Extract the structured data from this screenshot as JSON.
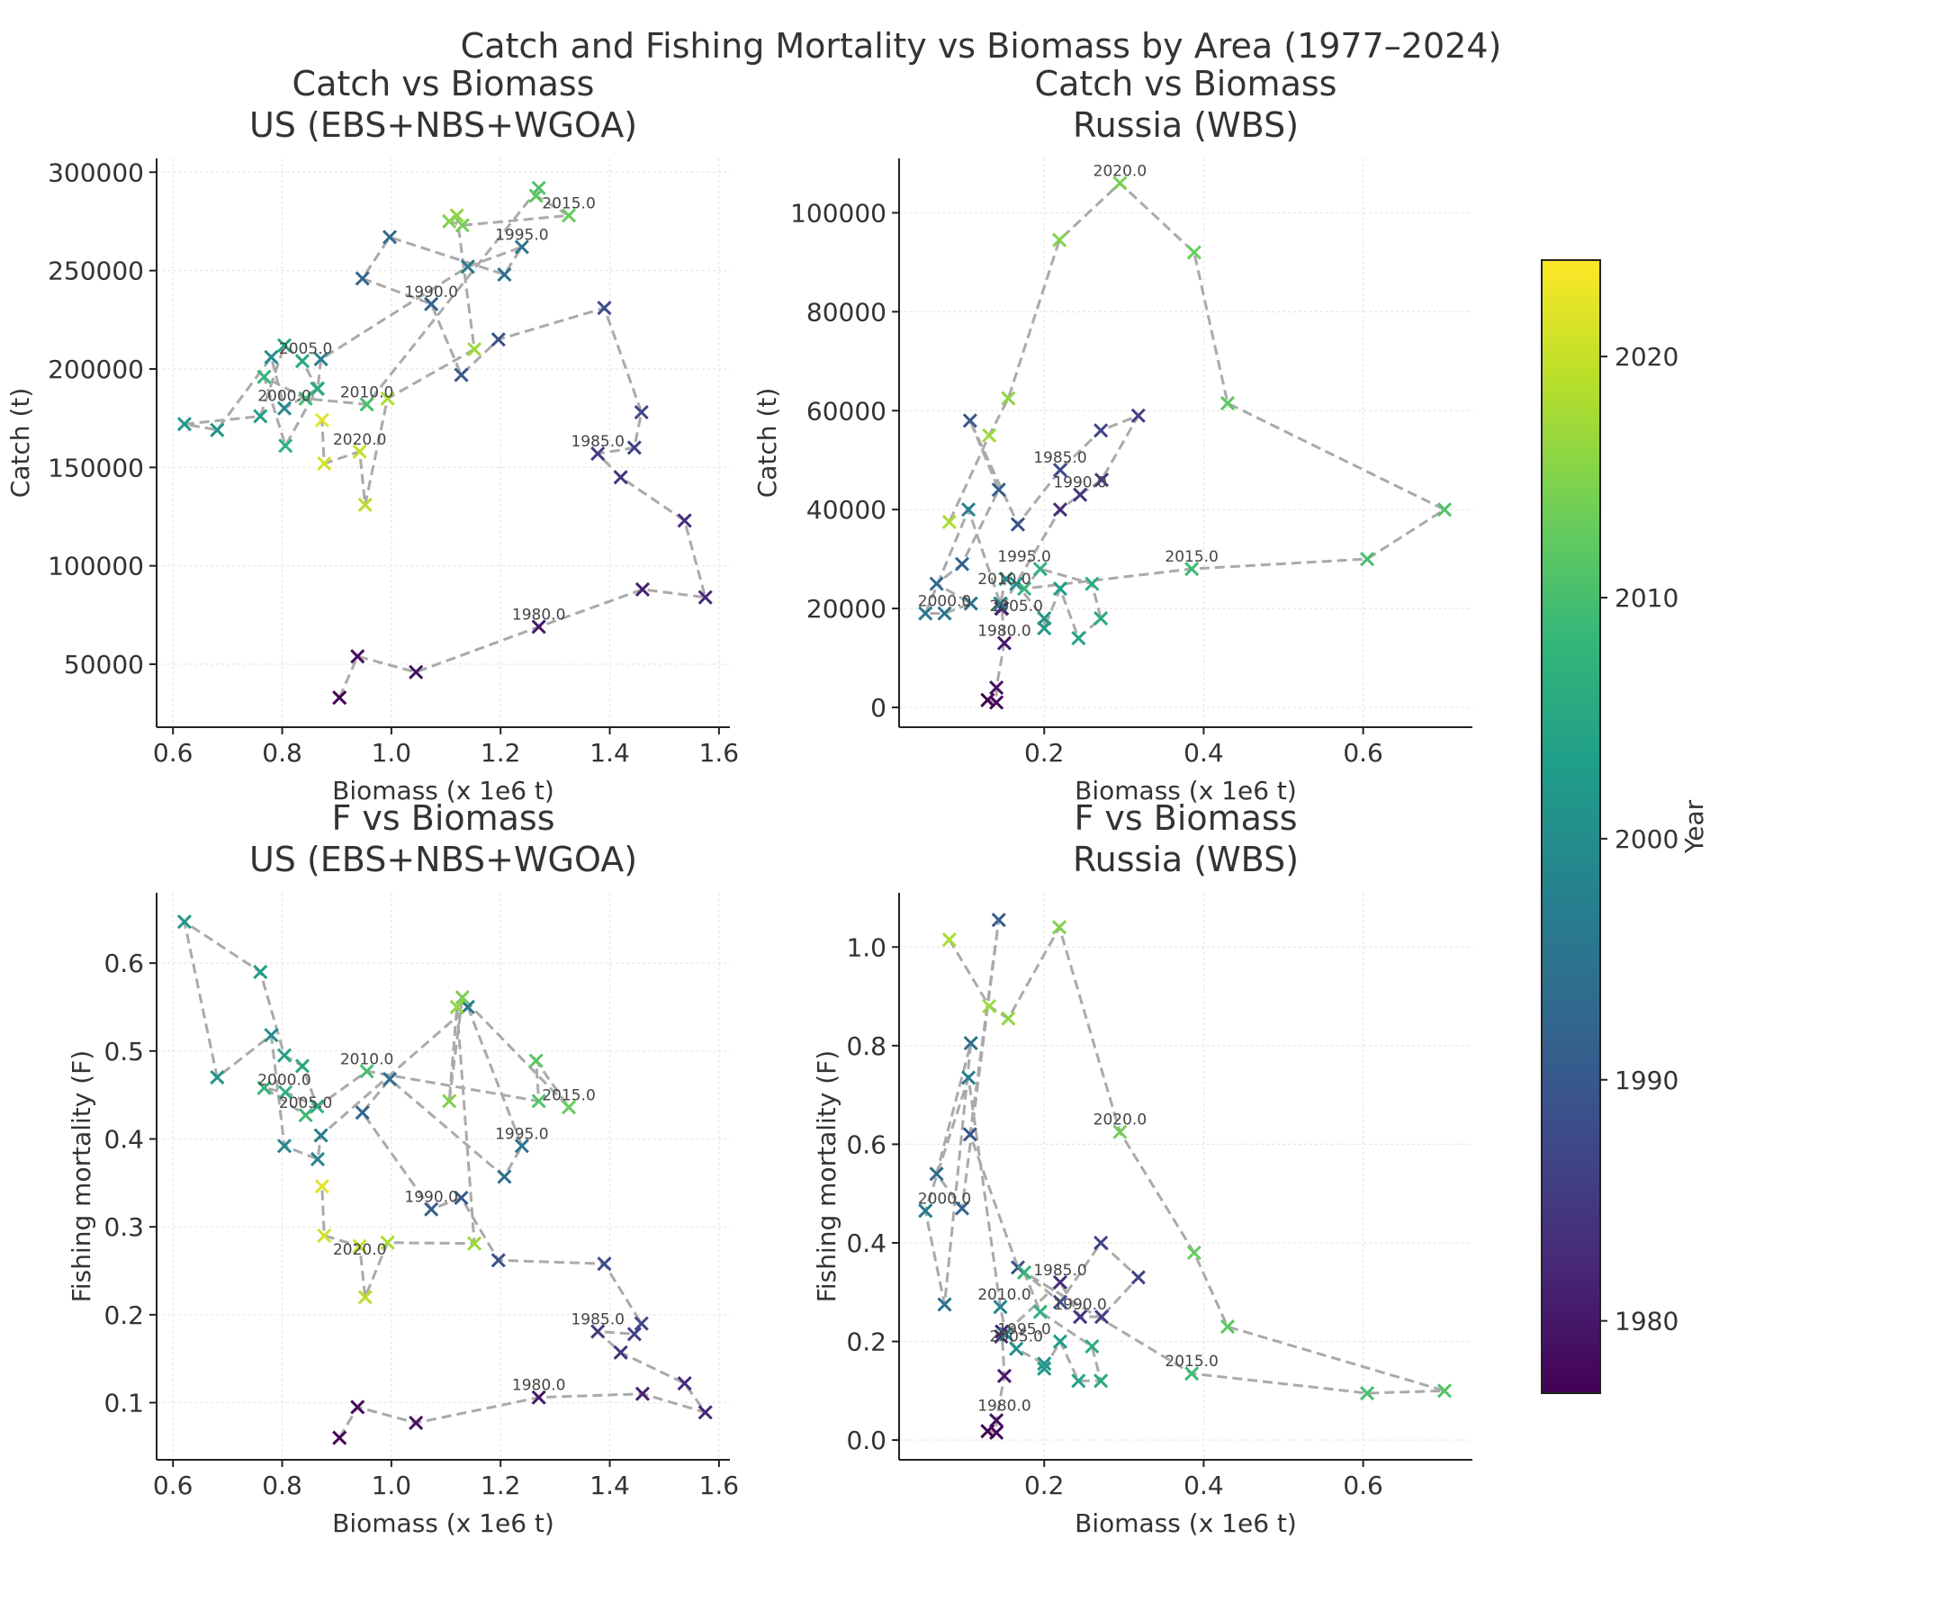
{
  "suptitle": "Catch and Fishing Mortality vs Biomass by Area (1977–2024)",
  "colorbar": {
    "label": "Year",
    "range": [
      1977,
      2024
    ],
    "ticks": [
      1980,
      1990,
      2000,
      2010,
      2020
    ],
    "colormap": "viridis",
    "stops": [
      "#440154",
      "#482878",
      "#3e4989",
      "#31688e",
      "#26828e",
      "#1f9e89",
      "#35b779",
      "#6ece58",
      "#b5de2b",
      "#fde725"
    ]
  },
  "style": {
    "line_color": "#aaaaaa",
    "grid": true,
    "marker": "x"
  },
  "chart_data": [
    {
      "id": "us_catch",
      "type": "scatter",
      "title": "Catch vs Biomass\nUS (EBS+NBS+WGOA)",
      "xlabel": "Biomass (x 1e6 t)",
      "ylabel": "Catch (t)",
      "xlim": [
        0.57,
        1.62
      ],
      "ylim": [
        18000,
        307000
      ],
      "xticks": [
        0.6,
        0.8,
        1.0,
        1.2,
        1.4,
        1.6
      ],
      "xtick_labels": [
        "0.6",
        "0.8",
        "1.0",
        "1.2",
        "1.4",
        "1.6"
      ],
      "yticks": [
        50000,
        100000,
        150000,
        200000,
        250000,
        300000
      ],
      "ytick_labels": [
        "50000",
        "100000",
        "150000",
        "200000",
        "250000",
        "300000"
      ],
      "series": [
        {
          "start_year": 1977,
          "x": [
            0.905,
            0.938,
            1.045,
            1.27,
            1.46,
            1.575,
            1.537,
            1.42,
            1.378,
            1.445,
            1.458,
            1.39,
            1.196,
            1.128,
            1.073,
            0.947,
            0.997,
            1.207,
            1.239,
            1.14,
            0.871,
            0.865,
            0.804,
            0.78,
            0.681,
            0.621,
            0.76,
            0.804,
            0.837,
            0.864,
            0.806,
            0.767,
            0.843,
            0.955,
            1.27,
            1.265,
            1.325,
            1.13,
            1.106,
            1.12,
            1.152,
            0.993,
            0.952,
            0.942,
            0.877,
            0.873
          ],
          "y": [
            33000,
            54000,
            46000,
            69000,
            88000,
            84000,
            123000,
            145000,
            157000,
            160000,
            178000,
            231000,
            215000,
            197000,
            233000,
            246000,
            267000,
            248000,
            262000,
            252000,
            205000,
            190000,
            180000,
            206000,
            169000,
            172000,
            176000,
            212000,
            204000,
            190000,
            161000,
            196000,
            185000,
            182000,
            292000,
            288000,
            278000,
            273000,
            275000,
            278000,
            210000,
            185000,
            131000,
            158000,
            152000,
            174000
          ]
        }
      ],
      "annotations": [
        {
          "text": "1980.0",
          "x": 1.27,
          "y": 69000
        },
        {
          "text": "1985.0",
          "x": 1.378,
          "y": 157000
        },
        {
          "text": "1990.0",
          "x": 1.073,
          "y": 233000
        },
        {
          "text": "1995.0",
          "x": 1.239,
          "y": 262000
        },
        {
          "text": "2000.0",
          "x": 0.804,
          "y": 180000
        },
        {
          "text": "2005.0",
          "x": 0.843,
          "y": 204000
        },
        {
          "text": "2010.0",
          "x": 0.955,
          "y": 182000
        },
        {
          "text": "2015.0",
          "x": 1.325,
          "y": 278000
        },
        {
          "text": "2020.0",
          "x": 0.942,
          "y": 158000
        }
      ]
    },
    {
      "id": "ru_catch",
      "type": "scatter",
      "title": "Catch vs Biomass\nRussia (WBS)",
      "xlabel": "Biomass (x 1e6 t)",
      "ylabel": "Catch (t)",
      "xlim": [
        0.018,
        0.737
      ],
      "ylim": [
        -4000,
        111000
      ],
      "xticks": [
        0.2,
        0.4,
        0.6
      ],
      "xtick_labels": [
        "0.2",
        "0.4",
        "0.6"
      ],
      "yticks": [
        0,
        20000,
        40000,
        60000,
        80000,
        100000
      ],
      "ytick_labels": [
        "0",
        "20000",
        "40000",
        "60000",
        "80000",
        "100000"
      ],
      "series": [
        {
          "start_year": 1977,
          "x": [
            0.129,
            0.14,
            0.14,
            0.15,
            0.147,
            0.146,
            0.22,
            0.245,
            0.272,
            0.318,
            0.271,
            0.22,
            0.167,
            0.107,
            0.143,
            0.097,
            0.065,
            0.108,
            0.075,
            0.051,
            0.105,
            0.145,
            0.152,
            0.165,
            0.2,
            0.2,
            0.22,
            0.243,
            0.271,
            0.26,
            0.195,
            0.175,
            0.385,
            0.605,
            0.702,
            0.43,
            0.388,
            0.295,
            0.219,
            0.155,
            0.131,
            0.081
          ],
          "y": [
            1500,
            1000,
            4000,
            13000,
            20000,
            20000,
            40000,
            43000,
            46000,
            59000,
            56000,
            48000,
            37000,
            58000,
            44000,
            29000,
            25000,
            21000,
            19000,
            19000,
            40000,
            21000,
            26000,
            25000,
            18000,
            16000,
            24000,
            14000,
            18000,
            25000,
            28000,
            24000,
            28000,
            30000,
            40000,
            61500,
            92000,
            106000,
            94500,
            62500,
            55000,
            37500
          ]
        }
      ],
      "annotations": [
        {
          "text": "1980.0",
          "x": 0.15,
          "y": 13000
        },
        {
          "text": "1985.0",
          "x": 0.22,
          "y": 48000
        },
        {
          "text": "1990.0",
          "x": 0.245,
          "y": 43000
        },
        {
          "text": "1995.0",
          "x": 0.175,
          "y": 28000
        },
        {
          "text": "2000.0",
          "x": 0.075,
          "y": 19000
        },
        {
          "text": "2005.0",
          "x": 0.165,
          "y": 18000
        },
        {
          "text": "2010.0",
          "x": 0.15,
          "y": 23500
        },
        {
          "text": "2015.0",
          "x": 0.385,
          "y": 28000
        },
        {
          "text": "2020.0",
          "x": 0.295,
          "y": 106000
        }
      ]
    },
    {
      "id": "us_f",
      "type": "scatter",
      "title": "F vs Biomass\nUS (EBS+NBS+WGOA)",
      "xlabel": "Biomass (x 1e6 t)",
      "ylabel": "Fishing mortality (F)",
      "xlim": [
        0.57,
        1.62
      ],
      "ylim": [
        0.035,
        0.68
      ],
      "xticks": [
        0.6,
        0.8,
        1.0,
        1.2,
        1.4,
        1.6
      ],
      "xtick_labels": [
        "0.6",
        "0.8",
        "1.0",
        "1.2",
        "1.4",
        "1.6"
      ],
      "yticks": [
        0.1,
        0.2,
        0.3,
        0.4,
        0.5,
        0.6
      ],
      "ytick_labels": [
        "0.1",
        "0.2",
        "0.3",
        "0.4",
        "0.5",
        "0.6"
      ],
      "series": [
        {
          "start_year": 1977,
          "x": [
            0.905,
            0.938,
            1.045,
            1.27,
            1.46,
            1.575,
            1.537,
            1.42,
            1.378,
            1.445,
            1.458,
            1.39,
            1.196,
            1.128,
            1.073,
            0.947,
            0.997,
            1.207,
            1.239,
            1.14,
            0.871,
            0.865,
            0.804,
            0.78,
            0.681,
            0.621,
            0.76,
            0.804,
            0.837,
            0.864,
            0.806,
            0.767,
            0.843,
            0.955,
            1.27,
            1.265,
            1.325,
            1.13,
            1.106,
            1.12,
            1.152,
            0.993,
            0.952,
            0.942,
            0.877,
            0.873
          ],
          "y": [
            0.06,
            0.095,
            0.077,
            0.106,
            0.11,
            0.089,
            0.122,
            0.157,
            0.181,
            0.178,
            0.19,
            0.258,
            0.262,
            0.333,
            0.32,
            0.43,
            0.468,
            0.357,
            0.392,
            0.55,
            0.404,
            0.377,
            0.392,
            0.518,
            0.47,
            0.647,
            0.59,
            0.495,
            0.483,
            0.437,
            0.453,
            0.458,
            0.427,
            0.477,
            0.443,
            0.489,
            0.436,
            0.561,
            0.443,
            0.55,
            0.281,
            0.282,
            0.22,
            0.278,
            0.29,
            0.346
          ]
        }
      ],
      "annotations": [
        {
          "text": "1980.0",
          "x": 1.27,
          "y": 0.106
        },
        {
          "text": "1985.0",
          "x": 1.378,
          "y": 0.181
        },
        {
          "text": "1990.0",
          "x": 1.073,
          "y": 0.32
        },
        {
          "text": "1995.0",
          "x": 1.239,
          "y": 0.392
        },
        {
          "text": "2000.0",
          "x": 0.804,
          "y": 0.453
        },
        {
          "text": "2005.0",
          "x": 0.843,
          "y": 0.427
        },
        {
          "text": "2010.0",
          "x": 0.955,
          "y": 0.477
        },
        {
          "text": "2015.0",
          "x": 1.325,
          "y": 0.436
        },
        {
          "text": "2020.0",
          "x": 0.942,
          "y": 0.26
        }
      ]
    },
    {
      "id": "ru_f",
      "type": "scatter",
      "title": "F vs Biomass\nRussia (WBS)",
      "xlabel": "Biomass (x 1e6 t)",
      "ylabel": "Fishing mortality (F)",
      "xlim": [
        0.018,
        0.737
      ],
      "ylim": [
        -0.04,
        1.11
      ],
      "xticks": [
        0.2,
        0.4,
        0.6
      ],
      "xtick_labels": [
        "0.2",
        "0.4",
        "0.6"
      ],
      "yticks": [
        0.0,
        0.2,
        0.4,
        0.6,
        0.8,
        1.0
      ],
      "ytick_labels": [
        "0.0",
        "0.2",
        "0.4",
        "0.6",
        "0.8",
        "1.0"
      ],
      "series": [
        {
          "start_year": 1977,
          "x": [
            0.129,
            0.14,
            0.14,
            0.15,
            0.147,
            0.146,
            0.22,
            0.245,
            0.272,
            0.318,
            0.271,
            0.22,
            0.167,
            0.107,
            0.143,
            0.097,
            0.065,
            0.108,
            0.075,
            0.051,
            0.105,
            0.145,
            0.152,
            0.165,
            0.2,
            0.2,
            0.22,
            0.243,
            0.271,
            0.26,
            0.195,
            0.175,
            0.385,
            0.605,
            0.702,
            0.43,
            0.388,
            0.295,
            0.219,
            0.155,
            0.131,
            0.081
          ],
          "y": [
            0.018,
            0.015,
            0.04,
            0.13,
            0.22,
            0.21,
            0.32,
            0.25,
            0.25,
            0.33,
            0.4,
            0.28,
            0.35,
            0.62,
            1.055,
            0.47,
            0.54,
            0.805,
            0.275,
            0.465,
            0.735,
            0.27,
            0.215,
            0.185,
            0.155,
            0.145,
            0.2,
            0.12,
            0.12,
            0.19,
            0.26,
            0.34,
            0.135,
            0.095,
            0.1,
            0.23,
            0.38,
            0.625,
            1.04,
            0.855,
            0.88,
            1.015
          ]
        }
      ],
      "annotations": [
        {
          "text": "1980.0",
          "x": 0.15,
          "y": 0.045
        },
        {
          "text": "1985.0",
          "x": 0.22,
          "y": 0.32
        },
        {
          "text": "1990.0",
          "x": 0.245,
          "y": 0.25
        },
        {
          "text": "1995.0",
          "x": 0.175,
          "y": 0.2
        },
        {
          "text": "2000.0",
          "x": 0.075,
          "y": 0.465
        },
        {
          "text": "2005.0",
          "x": 0.165,
          "y": 0.185
        },
        {
          "text": "2010.0",
          "x": 0.15,
          "y": 0.27
        },
        {
          "text": "2015.0",
          "x": 0.385,
          "y": 0.135
        },
        {
          "text": "2020.0",
          "x": 0.295,
          "y": 0.625
        }
      ]
    }
  ]
}
